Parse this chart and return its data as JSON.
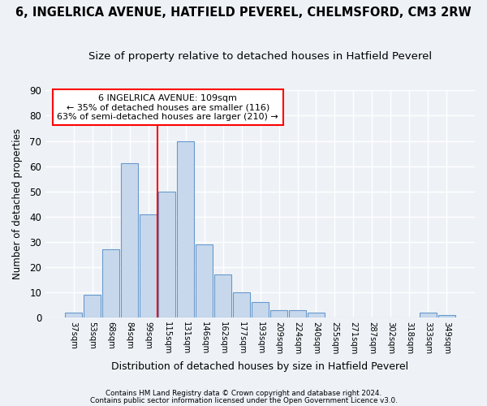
{
  "title1": "6, INGELRICA AVENUE, HATFIELD PEVEREL, CHELMSFORD, CM3 2RW",
  "title2": "Size of property relative to detached houses in Hatfield Peverel",
  "xlabel": "Distribution of detached houses by size in Hatfield Peverel",
  "ylabel": "Number of detached properties",
  "categories": [
    "37sqm",
    "53sqm",
    "68sqm",
    "84sqm",
    "99sqm",
    "115sqm",
    "131sqm",
    "146sqm",
    "162sqm",
    "177sqm",
    "193sqm",
    "209sqm",
    "224sqm",
    "240sqm",
    "255sqm",
    "271sqm",
    "287sqm",
    "302sqm",
    "318sqm",
    "333sqm",
    "349sqm"
  ],
  "values": [
    2,
    9,
    27,
    61,
    41,
    50,
    70,
    29,
    17,
    10,
    6,
    3,
    3,
    2,
    0,
    0,
    0,
    0,
    0,
    2,
    1
  ],
  "bar_color": "#c8d8ec",
  "bar_edge_color": "#6699cc",
  "vline_color": "red",
  "vline_pos": 4.5,
  "annotation_text": "6 INGELRICA AVENUE: 109sqm\n← 35% of detached houses are smaller (116)\n63% of semi-detached houses are larger (210) →",
  "annotation_box_color": "white",
  "annotation_box_edge": "red",
  "ylim": [
    0,
    90
  ],
  "yticks": [
    0,
    10,
    20,
    30,
    40,
    50,
    60,
    70,
    80,
    90
  ],
  "footer1": "Contains HM Land Registry data © Crown copyright and database right 2024.",
  "footer2": "Contains public sector information licensed under the Open Government Licence v3.0.",
  "bg_color": "#eef2f7",
  "grid_color": "white",
  "title1_fontsize": 10.5,
  "title2_fontsize": 9.5
}
